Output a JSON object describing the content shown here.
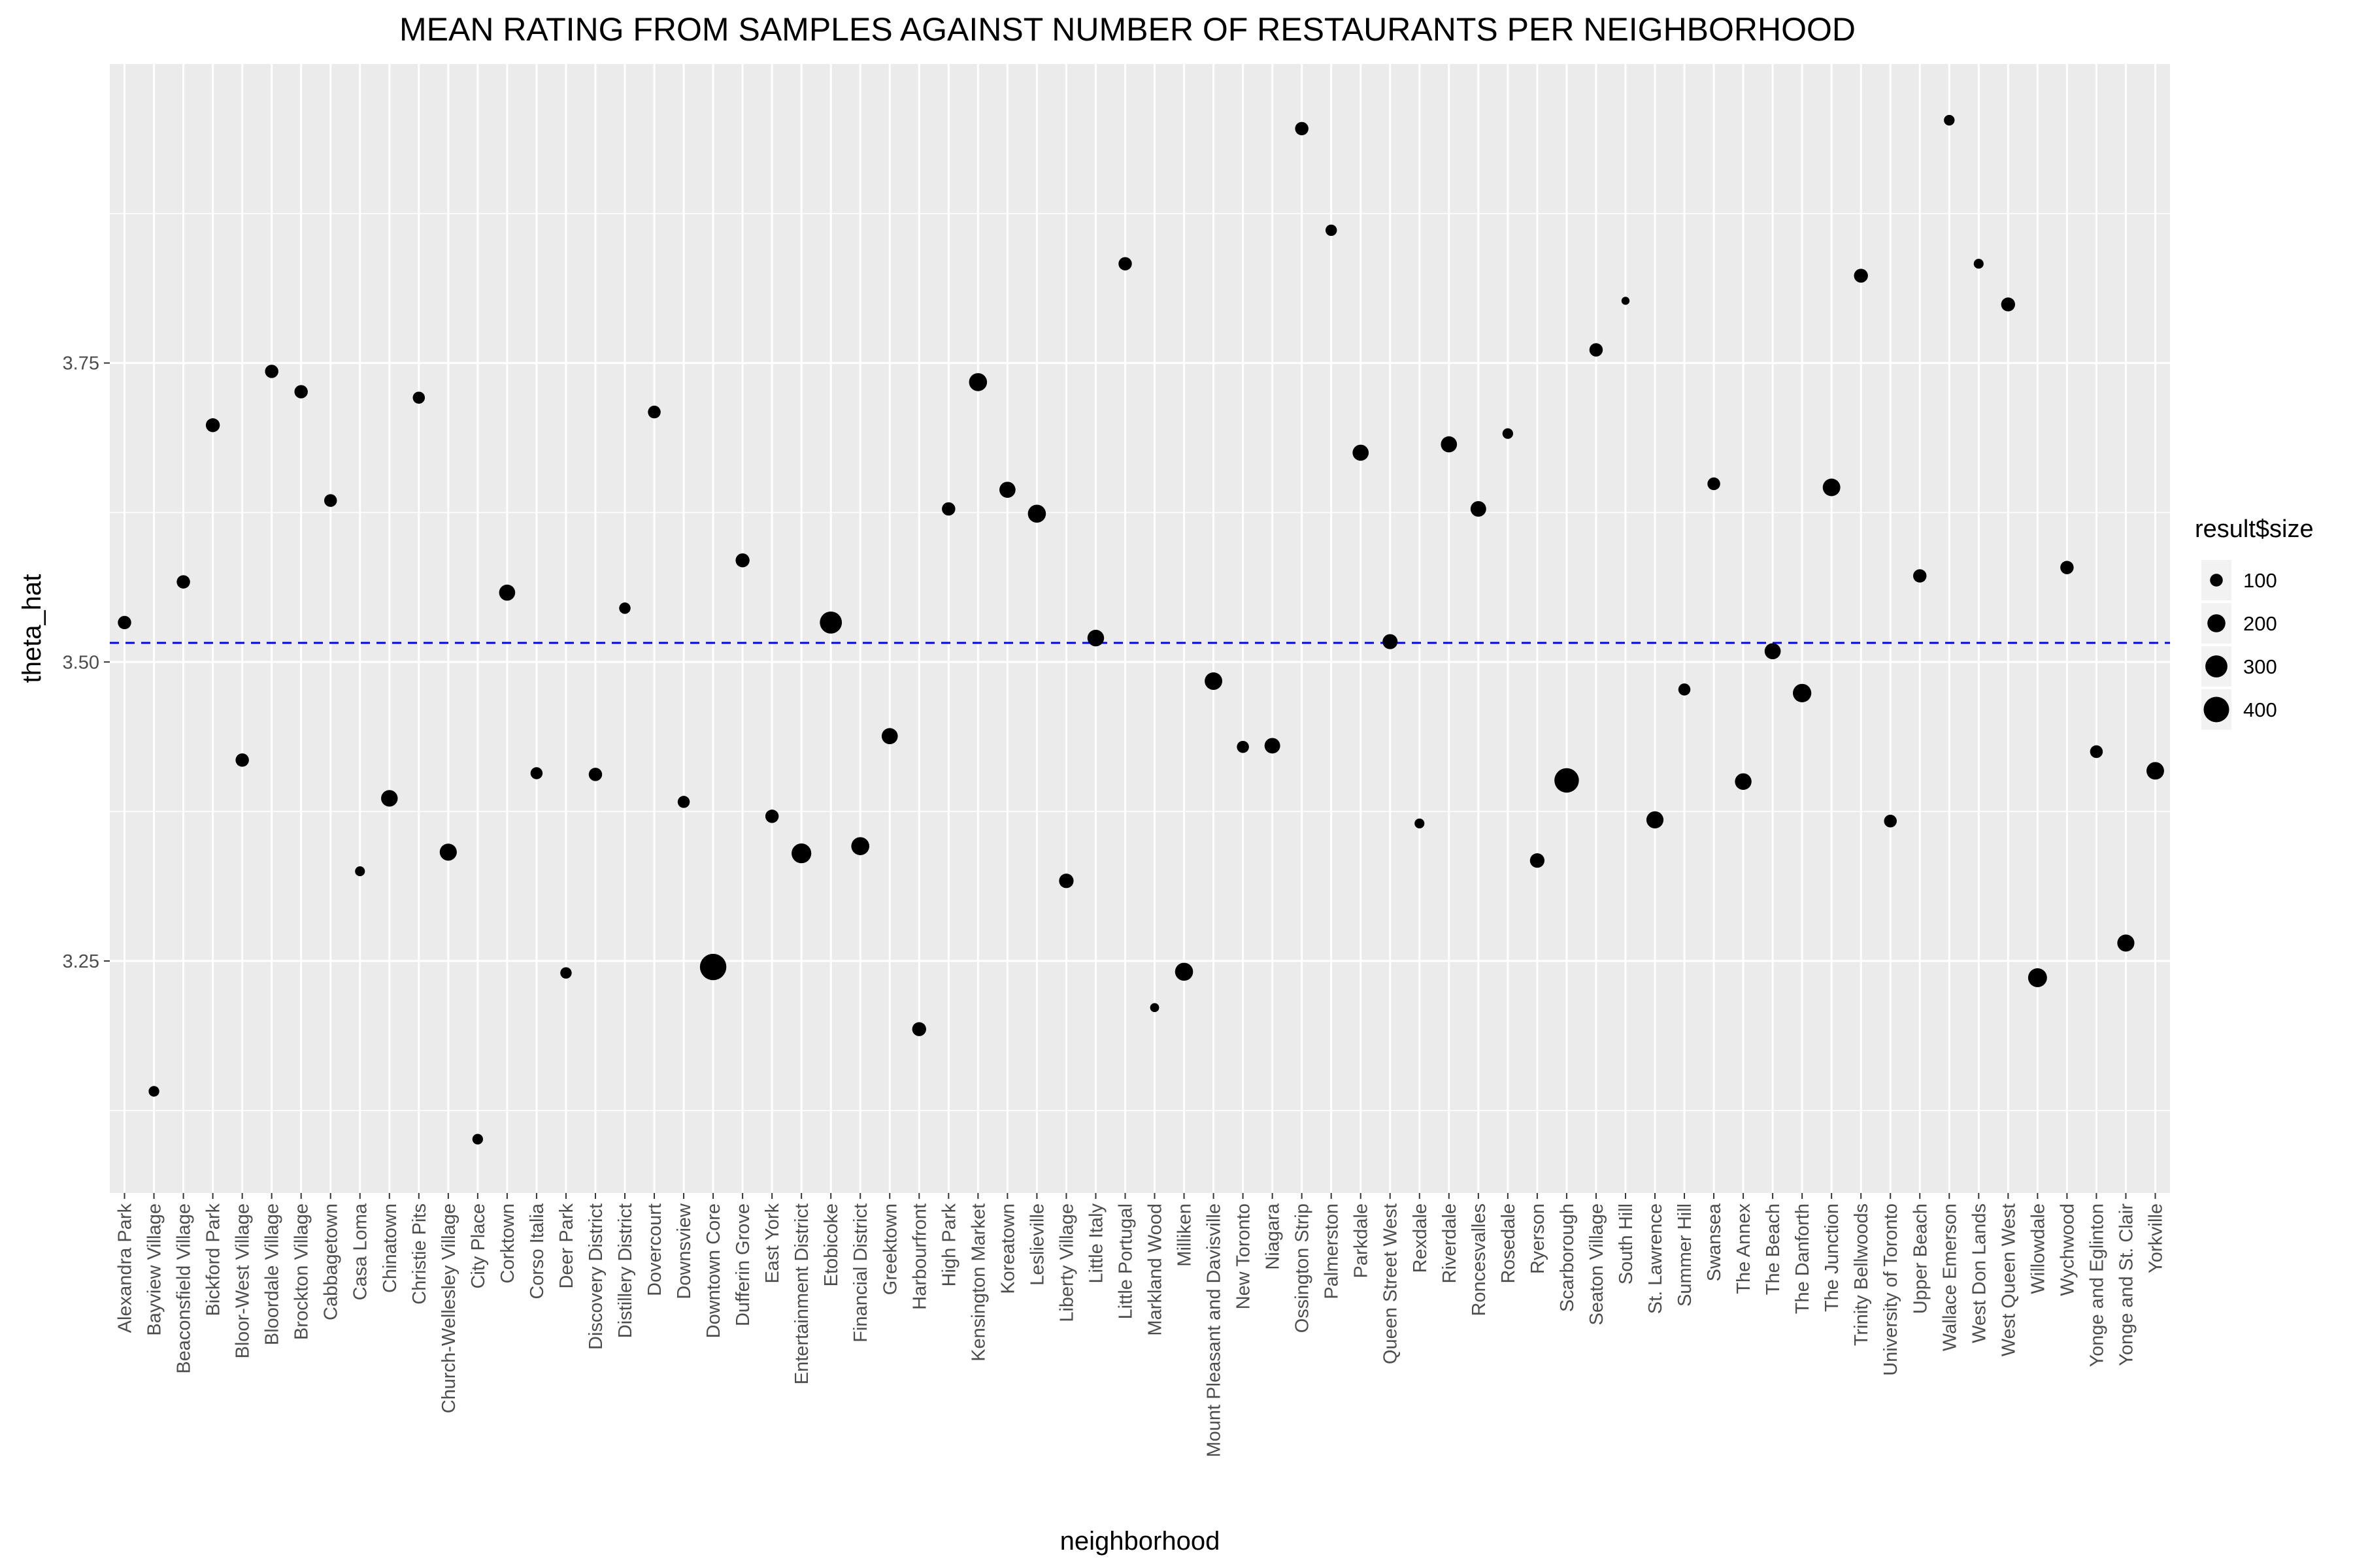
{
  "chart_data": {
    "type": "scatter",
    "title": "MEAN RATING FROM SAMPLES AGAINST NUMBER OF RESTAURANTS PER NEIGHBORHOOD",
    "xlabel": "neighborhood",
    "ylabel": "theta_hat",
    "ylim": [
      3.056,
      4.0
    ],
    "yticks": [
      3.25,
      3.5,
      3.75
    ],
    "ytick_labels": [
      "3.25",
      "3.50",
      "3.75"
    ],
    "grid": true,
    "reference_line": {
      "y": 3.516,
      "style": "dashed",
      "color": "#0000ff"
    },
    "point_color": "#000000",
    "panel_color": "#ebebeb",
    "grid_color": "#ffffff",
    "legend": {
      "title": "result$size",
      "position": "right",
      "entries": [
        {
          "label": "100",
          "value": 100
        },
        {
          "label": "200",
          "value": 200
        },
        {
          "label": "300",
          "value": 300
        },
        {
          "label": "400",
          "value": 400
        }
      ]
    },
    "categories": [
      "Alexandra Park",
      "Bayview Village",
      "Beaconsfield Village",
      "Bickford Park",
      "Bloor-West Village",
      "Bloordale Village",
      "Brockton Village",
      "Cabbagetown",
      "Casa Loma",
      "Chinatown",
      "Christie Pits",
      "Church-Wellesley Village",
      "City Place",
      "Corktown",
      "Corso Italia",
      "Deer Park",
      "Discovery District",
      "Distillery District",
      "Dovercourt",
      "Downsview",
      "Downtown Core",
      "Dufferin Grove",
      "East York",
      "Entertainment District",
      "Etobicoke",
      "Financial District",
      "Greektown",
      "Harbourfront",
      "High Park",
      "Kensington Market",
      "Koreatown",
      "Leslieville",
      "Liberty Village",
      "Little Italy",
      "Little Portugal",
      "Markland Wood",
      "Milliken",
      "Mount Pleasant and Davisville",
      "New Toronto",
      "Niagara",
      "Ossington Strip",
      "Palmerston",
      "Parkdale",
      "Queen Street West",
      "Rexdale",
      "Riverdale",
      "Roncesvalles",
      "Rosedale",
      "Ryerson",
      "Scarborough",
      "Seaton Village",
      "South Hill",
      "St. Lawrence",
      "Summer Hill",
      "Swansea",
      "The Annex",
      "The Beach",
      "The Danforth",
      "The Junction",
      "Trinity Bellwoods",
      "University of Toronto",
      "Upper Beach",
      "Wallace Emerson",
      "West Don Lands",
      "West Queen West",
      "Willowdale",
      "Wychwood",
      "Yonge and Eglinton",
      "Yonge and St. Clair",
      "Yorkville"
    ],
    "series": [
      {
        "theta_hat": [
          3.533,
          3.141,
          3.567,
          3.698,
          3.418,
          3.743,
          3.726,
          3.635,
          3.325,
          3.386,
          3.721,
          3.341,
          3.101,
          3.558,
          3.407,
          3.24,
          3.406,
          3.545,
          3.709,
          3.383,
          3.245,
          3.585,
          3.371,
          3.34,
          3.533,
          3.346,
          3.438,
          3.193,
          3.628,
          3.734,
          3.644,
          3.624,
          3.317,
          3.52,
          3.833,
          3.211,
          3.241,
          3.484,
          3.429,
          3.43,
          3.946,
          3.861,
          3.675,
          3.517,
          3.365,
          3.682,
          3.628,
          3.691,
          3.334,
          3.401,
          3.761,
          3.802,
          3.368,
          3.477,
          3.649,
          3.4,
          3.509,
          3.474,
          3.646,
          3.823,
          3.367,
          3.572,
          3.953,
          3.833,
          3.799,
          3.236,
          3.579,
          3.425,
          3.265,
          3.409
        ],
        "size": [
          110,
          70,
          110,
          120,
          110,
          110,
          110,
          100,
          60,
          170,
          90,
          180,
          70,
          160,
          90,
          80,
          110,
          80,
          100,
          90,
          430,
          120,
          110,
          240,
          300,
          200,
          160,
          120,
          110,
          200,
          160,
          200,
          130,
          170,
          110,
          50,
          200,
          190,
          90,
          150,
          110,
          80,
          160,
          140,
          60,
          160,
          150,
          70,
          130,
          370,
          110,
          40,
          180,
          90,
          100,
          170,
          160,
          210,
          190,
          120,
          100,
          110,
          70,
          60,
          120,
          220,
          110,
          100,
          180,
          190
        ]
      }
    ]
  }
}
